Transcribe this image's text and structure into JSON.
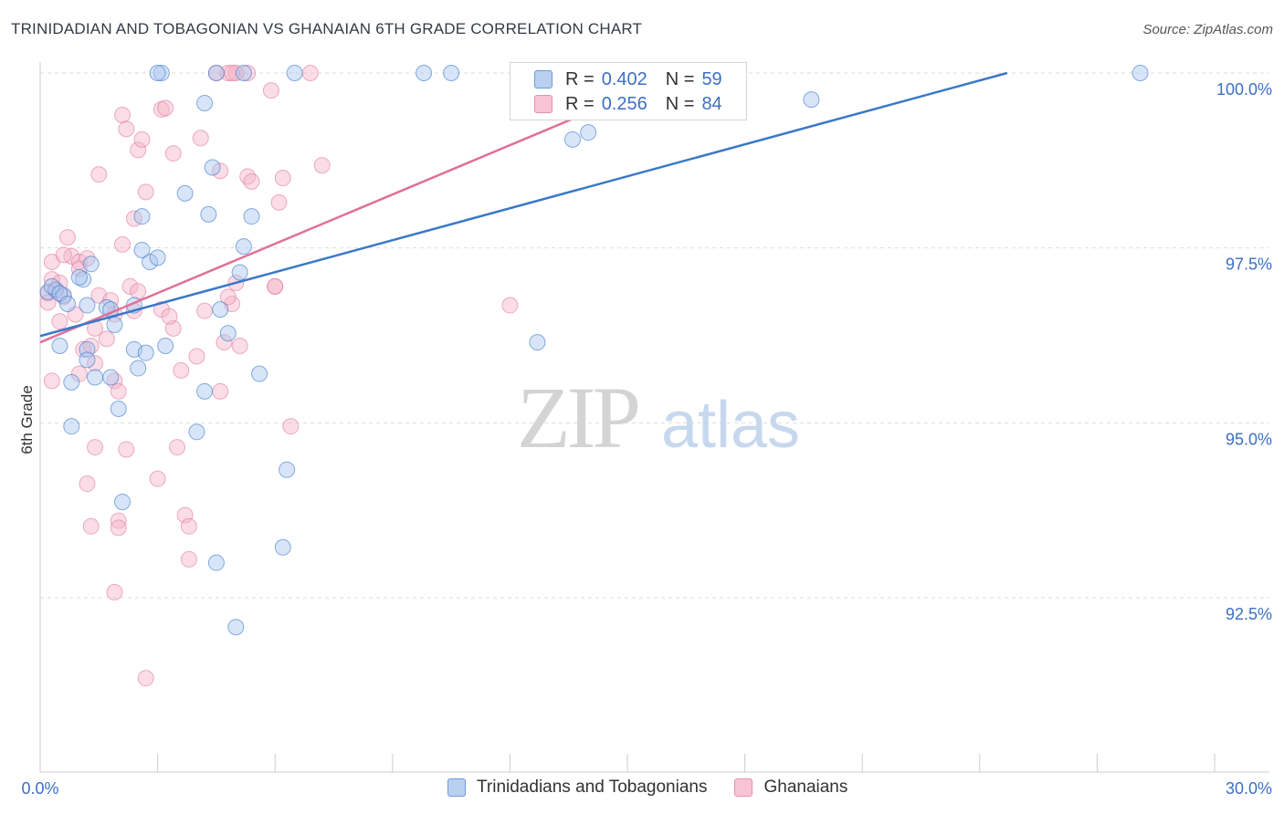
{
  "title": "TRINIDADIAN AND TOBAGONIAN VS GHANAIAN 6TH GRADE CORRELATION CHART",
  "source": "Source: ZipAtlas.com",
  "watermark": {
    "zip": "ZIP",
    "atlas": "atlas"
  },
  "colors": {
    "blue": "#3a78c9",
    "blue_fill": "#a8c6ef",
    "pink": "#e07098",
    "pink_fill": "#f4b3c8",
    "grid": "#dddddd",
    "tick_label": "#3d6fc4"
  },
  "legend": {
    "rows": [
      {
        "r_label": "R =",
        "r_value": "0.402",
        "n_label": "N =",
        "n_value": "59"
      },
      {
        "r_label": "R =",
        "r_value": "0.256",
        "n_label": "N =",
        "n_value": "84"
      }
    ]
  },
  "bottom_legend": [
    "Trinidadians and Tobagonians",
    "Ghanaians"
  ],
  "chart_data": {
    "type": "scatter",
    "title": "TRINIDADIAN AND TOBAGONIAN VS GHANAIAN 6TH GRADE CORRELATION CHART",
    "xlabel": "",
    "ylabel": "6th Grade",
    "xlim": [
      0,
      30
    ],
    "ylim": [
      90.3,
      100.25
    ],
    "x_tick_labels": [
      "0.0%",
      "30.0%"
    ],
    "y_ticks": [
      92.5,
      95.0,
      97.5,
      100.0
    ],
    "y_tick_labels": [
      "92.5%",
      "95.0%",
      "97.5%",
      "100.0%"
    ],
    "series": [
      {
        "name": "Trinidadians and Tobagonians",
        "R": 0.402,
        "N": 59,
        "trend": {
          "x": [
            0,
            24.7
          ],
          "y": [
            96.24,
            100.0
          ]
        },
        "points": [
          [
            0.2,
            96.87
          ],
          [
            0.4,
            96.9
          ],
          [
            0.6,
            96.82
          ],
          [
            0.3,
            96.95
          ],
          [
            0.5,
            96.85
          ],
          [
            0.7,
            96.7
          ],
          [
            1.2,
            96.68
          ],
          [
            1.3,
            97.27
          ],
          [
            1.1,
            97.05
          ],
          [
            1.0,
            97.08
          ],
          [
            0.5,
            96.1
          ],
          [
            1.2,
            96.05
          ],
          [
            1.7,
            96.65
          ],
          [
            1.9,
            96.4
          ],
          [
            2.4,
            96.05
          ],
          [
            2.5,
            95.78
          ],
          [
            2.7,
            96.0
          ],
          [
            3.2,
            96.1
          ],
          [
            2.8,
            97.3
          ],
          [
            2.6,
            97.47
          ],
          [
            3.0,
            97.36
          ],
          [
            3.1,
            100.0
          ],
          [
            3.0,
            100.0
          ],
          [
            6.5,
            100.0
          ],
          [
            9.8,
            100.0
          ],
          [
            10.5,
            100.0
          ],
          [
            28.1,
            100.0
          ],
          [
            4.5,
            100.0
          ],
          [
            4.2,
            99.57
          ],
          [
            4.4,
            98.65
          ],
          [
            3.7,
            98.28
          ],
          [
            2.6,
            97.95
          ],
          [
            4.3,
            97.98
          ],
          [
            5.4,
            97.95
          ],
          [
            5.2,
            97.52
          ],
          [
            5.1,
            97.15
          ],
          [
            4.6,
            96.62
          ],
          [
            4.8,
            96.28
          ],
          [
            2.4,
            96.68
          ],
          [
            1.8,
            96.62
          ],
          [
            0.8,
            95.58
          ],
          [
            1.4,
            95.65
          ],
          [
            1.8,
            95.65
          ],
          [
            2.0,
            95.2
          ],
          [
            4.2,
            95.45
          ],
          [
            5.6,
            95.7
          ],
          [
            0.8,
            94.95
          ],
          [
            4.0,
            94.87
          ],
          [
            6.3,
            94.33
          ],
          [
            2.1,
            93.87
          ],
          [
            6.2,
            93.22
          ],
          [
            4.5,
            93.0
          ],
          [
            5.0,
            92.08
          ],
          [
            13.6,
            99.05
          ],
          [
            14.0,
            99.15
          ],
          [
            19.7,
            99.62
          ],
          [
            12.7,
            96.15
          ],
          [
            1.2,
            95.9
          ],
          [
            5.2,
            100.0
          ]
        ]
      },
      {
        "name": "Ghanaians",
        "R": 0.256,
        "N": 84,
        "trend": {
          "x": [
            0,
            15.2
          ],
          "y": [
            96.15,
            99.72
          ]
        },
        "points": [
          [
            0.2,
            96.85
          ],
          [
            0.3,
            97.05
          ],
          [
            0.4,
            96.9
          ],
          [
            0.6,
            96.8
          ],
          [
            0.5,
            97.0
          ],
          [
            0.3,
            97.3
          ],
          [
            0.8,
            97.38
          ],
          [
            1.0,
            97.3
          ],
          [
            0.6,
            97.4
          ],
          [
            1.2,
            97.35
          ],
          [
            0.7,
            97.65
          ],
          [
            1.0,
            97.2
          ],
          [
            0.2,
            96.72
          ],
          [
            0.5,
            96.45
          ],
          [
            0.9,
            96.55
          ],
          [
            1.5,
            96.82
          ],
          [
            1.8,
            96.75
          ],
          [
            1.4,
            96.35
          ],
          [
            1.9,
            96.55
          ],
          [
            2.3,
            96.95
          ],
          [
            2.4,
            96.6
          ],
          [
            2.5,
            96.88
          ],
          [
            3.1,
            96.62
          ],
          [
            3.4,
            96.35
          ],
          [
            3.3,
            96.52
          ],
          [
            4.2,
            96.6
          ],
          [
            4.7,
            96.15
          ],
          [
            5.1,
            96.1
          ],
          [
            4.9,
            96.7
          ],
          [
            5.0,
            97.0
          ],
          [
            6.0,
            96.95
          ],
          [
            1.1,
            96.05
          ],
          [
            1.3,
            96.1
          ],
          [
            1.7,
            96.2
          ],
          [
            1.4,
            95.85
          ],
          [
            1.9,
            95.6
          ],
          [
            2.0,
            95.45
          ],
          [
            3.6,
            95.75
          ],
          [
            4.0,
            95.95
          ],
          [
            4.6,
            95.45
          ],
          [
            0.3,
            95.6
          ],
          [
            1.0,
            95.7
          ],
          [
            1.4,
            94.65
          ],
          [
            2.2,
            94.62
          ],
          [
            3.5,
            94.65
          ],
          [
            6.4,
            94.95
          ],
          [
            1.2,
            94.13
          ],
          [
            3.0,
            94.2
          ],
          [
            3.7,
            93.68
          ],
          [
            2.0,
            93.6
          ],
          [
            1.3,
            93.52
          ],
          [
            2.0,
            93.5
          ],
          [
            3.8,
            93.52
          ],
          [
            3.8,
            93.05
          ],
          [
            1.9,
            92.58
          ],
          [
            2.7,
            91.35
          ],
          [
            1.5,
            98.55
          ],
          [
            2.1,
            99.4
          ],
          [
            2.2,
            99.2
          ],
          [
            2.5,
            98.9
          ],
          [
            2.6,
            99.05
          ],
          [
            3.1,
            99.48
          ],
          [
            3.2,
            99.5
          ],
          [
            3.4,
            98.85
          ],
          [
            4.1,
            99.07
          ],
          [
            2.7,
            98.3
          ],
          [
            2.4,
            97.92
          ],
          [
            2.1,
            97.55
          ],
          [
            4.6,
            98.6
          ],
          [
            5.3,
            98.52
          ],
          [
            5.4,
            98.45
          ],
          [
            6.2,
            98.5
          ],
          [
            6.1,
            98.15
          ],
          [
            7.2,
            98.68
          ],
          [
            5.9,
            99.75
          ],
          [
            4.5,
            100.0
          ],
          [
            4.8,
            100.0
          ],
          [
            5.3,
            100.0
          ],
          [
            5.0,
            100.0
          ],
          [
            6.9,
            100.0
          ],
          [
            4.9,
            100.0
          ],
          [
            12.0,
            96.68
          ],
          [
            6.0,
            96.95
          ],
          [
            4.8,
            96.8
          ]
        ]
      }
    ]
  }
}
